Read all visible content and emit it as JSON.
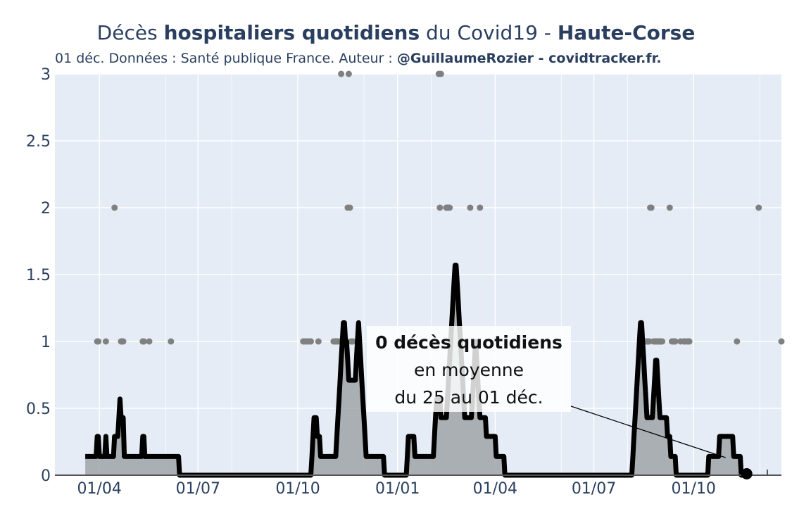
{
  "header": {
    "title_part1": "Décès ",
    "title_bold1": "hospitaliers quotidiens",
    "title_part2": " du Covid19 - ",
    "title_bold2": "Haute-Corse",
    "subtitle_plain": "01 déc. Données : Santé publique France. Auteur : ",
    "subtitle_bold": "@GuillaumeRozier - covidtracker.fr."
  },
  "annotation": {
    "line1": "0 décès quotidiens",
    "line2": "en moyenne",
    "line3": "du 25 au 01 déc."
  },
  "colors": {
    "plot_bg": "#e5ecf6",
    "grid": "#ffffff",
    "area_fill": "#a0a4a8",
    "line": "#000000",
    "dots": "#808080",
    "text": "#2a3f5f"
  },
  "chart_data": {
    "type": "line",
    "title": "Décès hospitaliers quotidiens du Covid19 - Haute-Corse",
    "x_start": "2020-03-19",
    "x_range": [
      "2020-02-20",
      "2021-12-21"
    ],
    "ylim": [
      0,
      3
    ],
    "y_ticks": [
      0,
      0.5,
      1,
      1.5,
      2,
      2.5,
      3
    ],
    "y_tick_labels": [
      "0",
      "0.5",
      "1",
      "1.5",
      "2",
      "2.5",
      "3"
    ],
    "x_ticks": [
      "2020-04-01",
      "2020-07-01",
      "2020-10-01",
      "2021-01-01",
      "2021-04-01",
      "2021-07-01",
      "2021-10-01"
    ],
    "x_tick_labels": [
      "01/04",
      "01/07",
      "01/10",
      "01/01",
      "01/04",
      "01/07",
      "01/10"
    ],
    "grid": true,
    "legend": "none",
    "series": [
      {
        "kind": "scatter",
        "values": [
          0,
          0,
          0,
          0,
          0,
          0,
          0,
          0,
          0,
          0,
          0,
          1,
          1,
          0,
          0,
          0,
          0,
          0,
          0,
          1,
          0,
          0,
          0,
          0,
          0,
          0,
          0,
          2,
          0,
          0,
          0,
          0,
          0,
          1,
          1,
          1,
          0,
          0,
          0,
          0,
          0,
          0,
          0,
          0,
          0,
          0,
          0,
          0,
          0,
          0,
          0,
          0,
          0,
          1,
          1,
          0,
          0,
          0,
          0,
          1,
          0,
          0,
          0,
          0,
          0,
          0,
          0,
          0,
          0,
          0,
          0,
          0,
          0,
          0,
          0,
          0,
          0,
          0,
          0,
          1,
          0,
          0,
          0,
          0,
          0,
          0,
          0,
          0,
          0,
          0,
          0,
          0,
          0,
          0,
          0,
          0,
          0,
          0,
          0,
          0,
          0,
          0,
          0,
          0,
          0,
          0,
          0,
          0,
          0,
          0,
          0,
          0,
          0,
          0,
          0,
          0,
          0,
          0,
          0,
          0,
          0,
          0,
          0,
          0,
          0,
          0,
          0,
          0,
          0,
          0,
          0,
          0,
          0,
          0,
          0,
          0,
          0,
          0,
          0,
          0,
          0,
          0,
          0,
          0,
          0,
          0,
          0,
          0,
          0,
          0,
          0,
          0,
          0,
          0,
          0,
          0,
          0,
          0,
          0,
          0,
          0,
          0,
          0,
          0,
          0,
          0,
          0,
          0,
          0,
          0,
          0,
          0,
          0,
          0,
          0,
          0,
          0,
          0,
          0,
          0,
          0,
          0,
          0,
          0,
          0,
          0,
          0,
          0,
          0,
          0,
          0,
          0,
          0,
          0,
          0,
          0,
          0,
          0,
          0,
          0,
          0,
          1,
          1,
          0,
          1,
          1,
          0,
          1,
          1,
          0,
          0,
          0,
          0,
          0,
          0,
          1,
          0,
          0,
          0,
          0,
          0,
          0,
          0,
          0,
          0,
          0,
          0,
          0,
          0,
          1,
          1,
          1,
          1,
          1,
          0,
          1,
          3,
          1,
          1,
          1,
          1,
          1,
          2,
          3,
          2,
          1,
          1,
          1,
          0,
          0,
          0,
          0,
          0,
          0,
          0,
          0,
          0,
          0,
          0,
          0,
          0,
          0,
          0,
          0,
          0,
          0,
          0,
          0,
          0,
          0,
          0,
          0,
          0,
          0,
          0,
          0,
          0,
          0,
          0,
          0,
          0,
          0,
          0,
          0,
          0,
          0,
          0,
          0,
          0,
          0,
          0,
          0,
          0,
          0,
          0,
          0,
          0,
          0,
          0,
          0,
          0,
          0,
          0,
          0,
          0,
          0,
          0,
          0,
          0,
          0,
          0,
          0,
          0,
          0,
          0,
          0,
          0,
          0,
          0,
          0,
          0,
          0,
          0,
          0,
          0,
          0,
          3,
          2,
          3,
          0,
          0,
          0,
          0,
          2,
          2,
          2,
          2,
          0,
          0,
          0,
          0,
          0,
          0,
          0,
          0,
          0,
          0,
          0,
          0,
          0,
          0,
          0,
          0,
          0,
          0,
          2,
          0,
          0,
          0,
          0,
          0,
          0,
          0,
          0,
          2,
          0,
          0,
          0,
          0,
          0,
          0,
          0,
          0,
          0,
          0,
          0,
          0,
          0,
          0,
          0,
          0,
          0,
          0,
          0,
          0,
          0,
          0,
          0,
          0,
          0,
          0,
          0,
          0,
          0,
          0,
          0,
          0,
          0,
          0,
          0,
          0,
          0,
          0,
          0,
          0,
          0,
          0,
          0,
          0,
          0,
          0,
          0,
          0,
          0,
          0,
          0,
          0,
          0,
          0,
          0,
          0,
          0,
          0,
          0,
          0,
          0,
          0,
          0,
          0,
          0,
          0,
          0,
          0,
          0,
          0,
          0,
          0,
          0,
          0,
          0,
          0,
          0,
          0,
          0,
          0,
          0,
          0,
          0,
          0,
          0,
          0,
          0,
          0,
          0,
          0,
          0,
          0,
          0,
          0,
          0,
          0,
          0,
          0,
          0,
          0,
          0,
          0,
          0,
          0,
          0,
          0,
          0,
          0,
          0,
          0,
          0,
          0,
          0,
          0,
          0,
          0,
          0,
          0,
          0,
          0,
          0,
          0,
          0,
          0,
          0,
          0,
          0,
          0,
          0,
          0,
          0,
          0,
          0,
          0,
          0,
          0,
          0,
          0,
          0,
          0,
          0,
          0,
          0,
          0,
          0,
          0,
          0,
          0,
          0,
          1,
          1,
          1,
          1,
          1,
          1,
          1,
          2,
          2,
          0,
          1,
          1,
          1,
          1,
          1,
          1,
          1,
          1,
          1,
          0,
          0,
          0,
          0,
          0,
          0,
          2,
          0,
          1,
          1,
          1,
          1,
          0,
          0,
          0,
          0,
          1,
          0,
          0,
          1,
          1,
          0,
          1,
          1,
          1,
          0,
          0,
          0,
          0,
          0,
          0,
          0,
          0,
          0,
          0,
          0,
          0,
          0,
          0,
          0,
          0,
          0,
          0,
          0,
          0,
          0,
          0,
          0,
          0,
          0,
          0,
          0,
          0,
          0,
          0,
          0,
          0,
          0,
          0,
          0,
          0,
          0,
          0,
          0,
          0,
          0,
          0,
          0,
          1,
          0,
          0,
          0,
          0,
          0,
          0,
          0,
          0,
          0,
          0,
          0,
          0,
          0,
          0,
          0,
          0,
          0,
          0,
          0,
          2,
          0,
          0,
          0,
          0,
          0,
          0,
          0,
          0,
          0,
          0,
          0,
          0,
          0,
          0,
          0,
          0,
          0,
          0,
          0,
          0,
          1,
          0,
          0,
          0,
          0,
          0,
          0
        ]
      },
      {
        "kind": "line",
        "values": [
          0.14,
          0.14,
          0.14,
          0.14,
          0.14,
          0.14,
          0.14,
          0.14,
          0.14,
          0.14,
          0.14,
          0.29,
          0.29,
          0.14,
          0.14,
          0.14,
          0.14,
          0.14,
          0.14,
          0.29,
          0.14,
          0.14,
          0.14,
          0.14,
          0.14,
          0.14,
          0.14,
          0.29,
          0.29,
          0.29,
          0.29,
          0.43,
          0.57,
          0.43,
          0.43,
          0.43,
          0.14,
          0.14,
          0.14,
          0.14,
          0.14,
          0.14,
          0.14,
          0.14,
          0.14,
          0.14,
          0.14,
          0.14,
          0.14,
          0.14,
          0.14,
          0.14,
          0.14,
          0.29,
          0.29,
          0.14,
          0.14,
          0.14,
          0.14,
          0.14,
          0.14,
          0.14,
          0.14,
          0.14,
          0.14,
          0.14,
          0.14,
          0.14,
          0.14,
          0.14,
          0.14,
          0.14,
          0.14,
          0.14,
          0.14,
          0.14,
          0.14,
          0.14,
          0.14,
          0.14,
          0.14,
          0.14,
          0.14,
          0.14,
          0.14,
          0.14,
          0.14,
          0,
          0,
          0,
          0,
          0,
          0,
          0,
          0,
          0,
          0,
          0,
          0,
          0,
          0,
          0,
          0,
          0,
          0,
          0,
          0,
          0,
          0,
          0,
          0,
          0,
          0,
          0,
          0,
          0,
          0,
          0,
          0,
          0,
          0,
          0,
          0,
          0,
          0,
          0,
          0,
          0,
          0,
          0,
          0,
          0,
          0,
          0,
          0,
          0,
          0,
          0,
          0,
          0,
          0,
          0,
          0,
          0,
          0,
          0,
          0,
          0,
          0,
          0,
          0,
          0,
          0,
          0,
          0,
          0,
          0,
          0,
          0,
          0,
          0,
          0,
          0,
          0,
          0,
          0,
          0,
          0,
          0,
          0,
          0,
          0,
          0,
          0,
          0,
          0,
          0,
          0,
          0,
          0,
          0,
          0,
          0,
          0,
          0,
          0,
          0,
          0,
          0,
          0,
          0,
          0,
          0,
          0,
          0,
          0,
          0,
          0,
          0,
          0,
          0,
          0,
          0,
          0,
          0,
          0,
          0,
          0,
          0,
          0.14,
          0.29,
          0.43,
          0.43,
          0.43,
          0.29,
          0.29,
          0.29,
          0.14,
          0.14,
          0.14,
          0.14,
          0.14,
          0.14,
          0.14,
          0.14,
          0.14,
          0.14,
          0.14,
          0.14,
          0.14,
          0.14,
          0.14,
          0.29,
          0.43,
          0.57,
          0.71,
          0.86,
          1,
          1.14,
          1.14,
          1,
          1,
          0.86,
          0.71,
          0.71,
          0.71,
          0.71,
          0.71,
          0.71,
          0.71,
          0.86,
          1,
          1.14,
          1,
          0.86,
          0.71,
          0.57,
          0.43,
          0.29,
          0.14,
          0.14,
          0.14,
          0.14,
          0.14,
          0.14,
          0.14,
          0.14,
          0.14,
          0.14,
          0.14,
          0.14,
          0.14,
          0.14,
          0.14,
          0.14,
          0.14,
          0,
          0,
          0,
          0,
          0,
          0,
          0,
          0,
          0,
          0,
          0,
          0,
          0,
          0,
          0,
          0,
          0,
          0,
          0,
          0,
          0,
          0.14,
          0.29,
          0.29,
          0.29,
          0.29,
          0.29,
          0.29,
          0.14,
          0.14,
          0.14,
          0.14,
          0.14,
          0.14,
          0.14,
          0.14,
          0.14,
          0.14,
          0.14,
          0.14,
          0.14,
          0.14,
          0.14,
          0.14,
          0.14,
          0.14,
          0.29,
          0.43,
          0.57,
          0.57,
          0.57,
          0.57,
          0.43,
          0.43,
          0.43,
          0.43,
          0.43,
          0.43,
          0.57,
          0.71,
          0.86,
          1,
          1.14,
          1.29,
          1.43,
          1.57,
          1.57,
          1.43,
          1.29,
          1.14,
          1,
          0.86,
          0.71,
          0.57,
          0.43,
          0.43,
          0.43,
          0.43,
          0.43,
          0.43,
          0.43,
          0.57,
          0.71,
          0.86,
          1,
          0.86,
          0.71,
          0.57,
          0.43,
          0.43,
          0.43,
          0.43,
          0.43,
          0.43,
          0.29,
          0.29,
          0.29,
          0.29,
          0.29,
          0.29,
          0.29,
          0.29,
          0.29,
          0.14,
          0.14,
          0.14,
          0.14,
          0.14,
          0.14,
          0.14,
          0.14,
          0,
          0,
          0,
          0,
          0,
          0,
          0,
          0,
          0,
          0,
          0,
          0,
          0,
          0,
          0,
          0,
          0,
          0,
          0,
          0,
          0,
          0,
          0,
          0,
          0,
          0,
          0,
          0,
          0,
          0,
          0,
          0,
          0,
          0,
          0,
          0,
          0,
          0,
          0,
          0,
          0,
          0,
          0,
          0,
          0,
          0,
          0,
          0,
          0,
          0,
          0,
          0,
          0,
          0,
          0,
          0,
          0,
          0,
          0,
          0,
          0,
          0,
          0,
          0,
          0,
          0,
          0,
          0,
          0,
          0,
          0,
          0,
          0,
          0,
          0,
          0,
          0,
          0,
          0,
          0,
          0,
          0,
          0,
          0,
          0,
          0,
          0,
          0,
          0,
          0,
          0,
          0,
          0,
          0,
          0,
          0,
          0,
          0,
          0,
          0,
          0,
          0,
          0,
          0,
          0,
          0,
          0,
          0,
          0,
          0,
          0,
          0,
          0,
          0,
          0,
          0,
          0,
          0,
          0.14,
          0.29,
          0.43,
          0.57,
          0.71,
          0.86,
          1,
          1.14,
          1.14,
          1,
          0.86,
          0.71,
          0.57,
          0.43,
          0.43,
          0.43,
          0.43,
          0.43,
          0.43,
          0.57,
          0.71,
          0.86,
          0.86,
          0.71,
          0.57,
          0.43,
          0.43,
          0.43,
          0.43,
          0.43,
          0.43,
          0.43,
          0.29,
          0.29,
          0.29,
          0.14,
          0.14,
          0.14,
          0.14,
          0.14,
          0,
          0,
          0,
          0,
          0,
          0,
          0,
          0,
          0,
          0,
          0,
          0,
          0,
          0,
          0,
          0,
          0,
          0,
          0,
          0,
          0,
          0,
          0,
          0,
          0,
          0,
          0,
          0,
          0,
          0,
          0.14,
          0.14,
          0.14,
          0.14,
          0.14,
          0.14,
          0.14,
          0.14,
          0.14,
          0.14,
          0.29,
          0.29,
          0.29,
          0.29,
          0.29,
          0.29,
          0.29,
          0.29,
          0.29,
          0.29,
          0.29,
          0.29,
          0.29,
          0.14,
          0.14,
          0.14,
          0.14,
          0.14,
          0.14,
          0.14,
          0,
          0,
          0,
          0,
          0,
          0
        ]
      }
    ]
  }
}
